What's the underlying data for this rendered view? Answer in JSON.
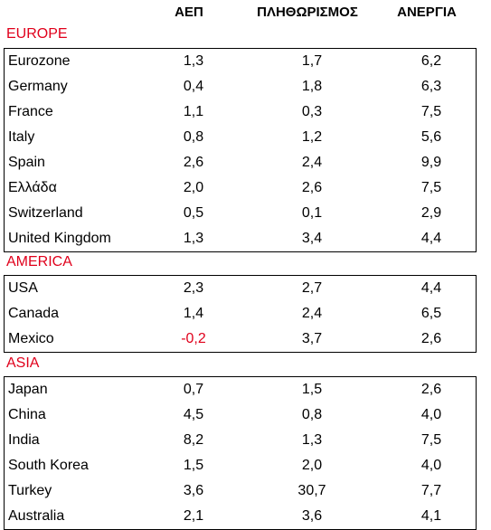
{
  "header": {
    "col1": "ΑΕΠ",
    "col2": "ΠΛΗΘΩΡΙΣΜΟΣ",
    "col3": "ΑΝΕΡΓΙΑ"
  },
  "colors": {
    "section": "#e0001b",
    "negative": "#e0001b",
    "border": "#000000"
  },
  "sections": [
    {
      "title": "EUROPE",
      "rows": [
        {
          "name": "Eurozone",
          "v1": "1,3",
          "v2": "1,7",
          "v3": "6,2"
        },
        {
          "name": "Germany",
          "v1": "0,4",
          "v2": "1,8",
          "v3": "6,3"
        },
        {
          "name": "France",
          "v1": "1,1",
          "v2": "0,3",
          "v3": "7,5"
        },
        {
          "name": "Italy",
          "v1": "0,8",
          "v2": "1,2",
          "v3": "5,6"
        },
        {
          "name": "Spain",
          "v1": "2,6",
          "v2": "2,4",
          "v3": "9,9"
        },
        {
          "name": "Ελλάδα",
          "v1": "2,0",
          "v2": "2,6",
          "v3": "7,5"
        },
        {
          "name": "Switzerland",
          "v1": "0,5",
          "v2": "0,1",
          "v3": "2,9"
        },
        {
          "name": "United Kingdom",
          "v1": "1,3",
          "v2": "3,4",
          "v3": "4,4"
        }
      ]
    },
    {
      "title": "AMERICA",
      "rows": [
        {
          "name": "USA",
          "v1": "2,3",
          "v2": "2,7",
          "v3": "4,4"
        },
        {
          "name": "Canada",
          "v1": "1,4",
          "v2": "2,4",
          "v3": "6,5"
        },
        {
          "name": "Mexico",
          "v1": "-0,2",
          "v2": "3,7",
          "v3": "2,6"
        }
      ]
    },
    {
      "title": "ASIA",
      "rows": [
        {
          "name": "Japan",
          "v1": "0,7",
          "v2": "1,5",
          "v3": "2,6"
        },
        {
          "name": "China",
          "v1": "4,5",
          "v2": "0,8",
          "v3": "4,0"
        },
        {
          "name": "India",
          "v1": "8,2",
          "v2": "1,3",
          "v3": "7,5"
        },
        {
          "name": "South Korea",
          "v1": "1,5",
          "v2": "2,0",
          "v3": "4,0"
        },
        {
          "name": "Turkey",
          "v1": "3,6",
          "v2": "30,7",
          "v3": "7,7"
        },
        {
          "name": "Australia",
          "v1": "2,1",
          "v2": "3,6",
          "v3": "4,1"
        }
      ]
    }
  ]
}
